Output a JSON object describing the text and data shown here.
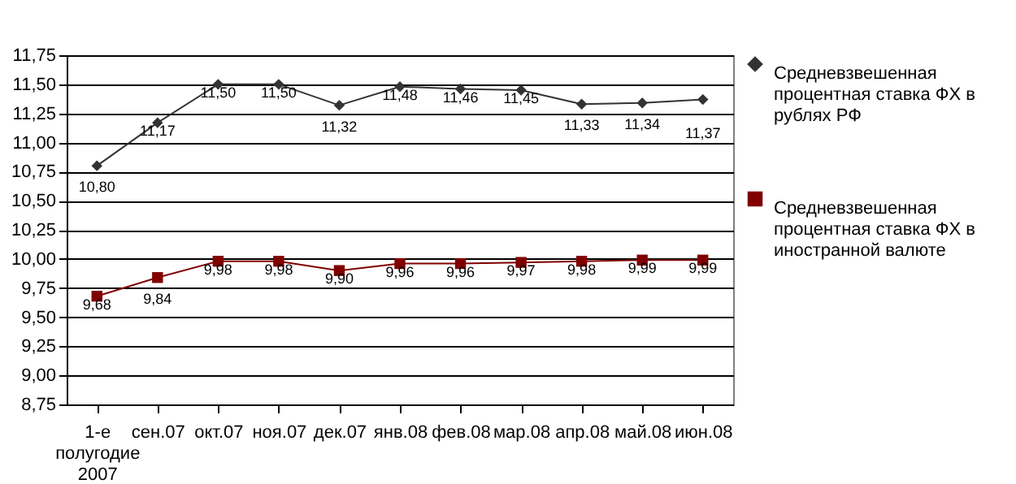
{
  "chart_data": {
    "type": "line",
    "categories": [
      "1-е полугодие 2007",
      "сен.07",
      "окт.07",
      "ноя.07",
      "дек.07",
      "янв.08",
      "фев.08",
      "мар.08",
      "апр.08",
      "май.08",
      "июн.08"
    ],
    "series": [
      {
        "name": "Средневзвешенная процентная ставка ФХ в рублях РФ",
        "color": "#333333",
        "marker": "diamond",
        "values": [
          10.8,
          11.17,
          11.5,
          11.5,
          11.32,
          11.48,
          11.46,
          11.45,
          11.33,
          11.34,
          11.37
        ],
        "value_labels": [
          "10,80",
          "11,17",
          "11,50",
          "11,50",
          "11,32",
          "11,48",
          "11,46",
          "11,45",
          "11,33",
          "11,34",
          "11,37"
        ]
      },
      {
        "name": "Средневзвешенная процентная ставка ФХ в иностранной валюте",
        "color": "#800000",
        "marker": "square",
        "values": [
          9.68,
          9.84,
          9.98,
          9.98,
          9.9,
          9.96,
          9.96,
          9.97,
          9.98,
          9.99,
          9.99
        ],
        "value_labels": [
          "9,68",
          "9,84",
          "9,98",
          "9,98",
          "9,90",
          "9,96",
          "9,96",
          "9,97",
          "9,98",
          "9,99",
          "9,99"
        ]
      }
    ],
    "ylim": [
      8.75,
      11.75
    ],
    "yticks": [
      {
        "value": 8.75,
        "label": "8,75"
      },
      {
        "value": 9.0,
        "label": "9,00"
      },
      {
        "value": 9.25,
        "label": "9,25"
      },
      {
        "value": 9.5,
        "label": "9,50"
      },
      {
        "value": 9.75,
        "label": "9,75"
      },
      {
        "value": 10.0,
        "label": "10,00"
      },
      {
        "value": 10.25,
        "label": "10,25"
      },
      {
        "value": 10.5,
        "label": "10,50"
      },
      {
        "value": 10.75,
        "label": "10,75"
      },
      {
        "value": 11.0,
        "label": "11,00"
      },
      {
        "value": 11.25,
        "label": "11,25"
      },
      {
        "value": 11.5,
        "label": "11,50"
      },
      {
        "value": 11.75,
        "label": "11,75"
      }
    ],
    "grid": "y",
    "legend": "right",
    "line_style": "solid"
  }
}
